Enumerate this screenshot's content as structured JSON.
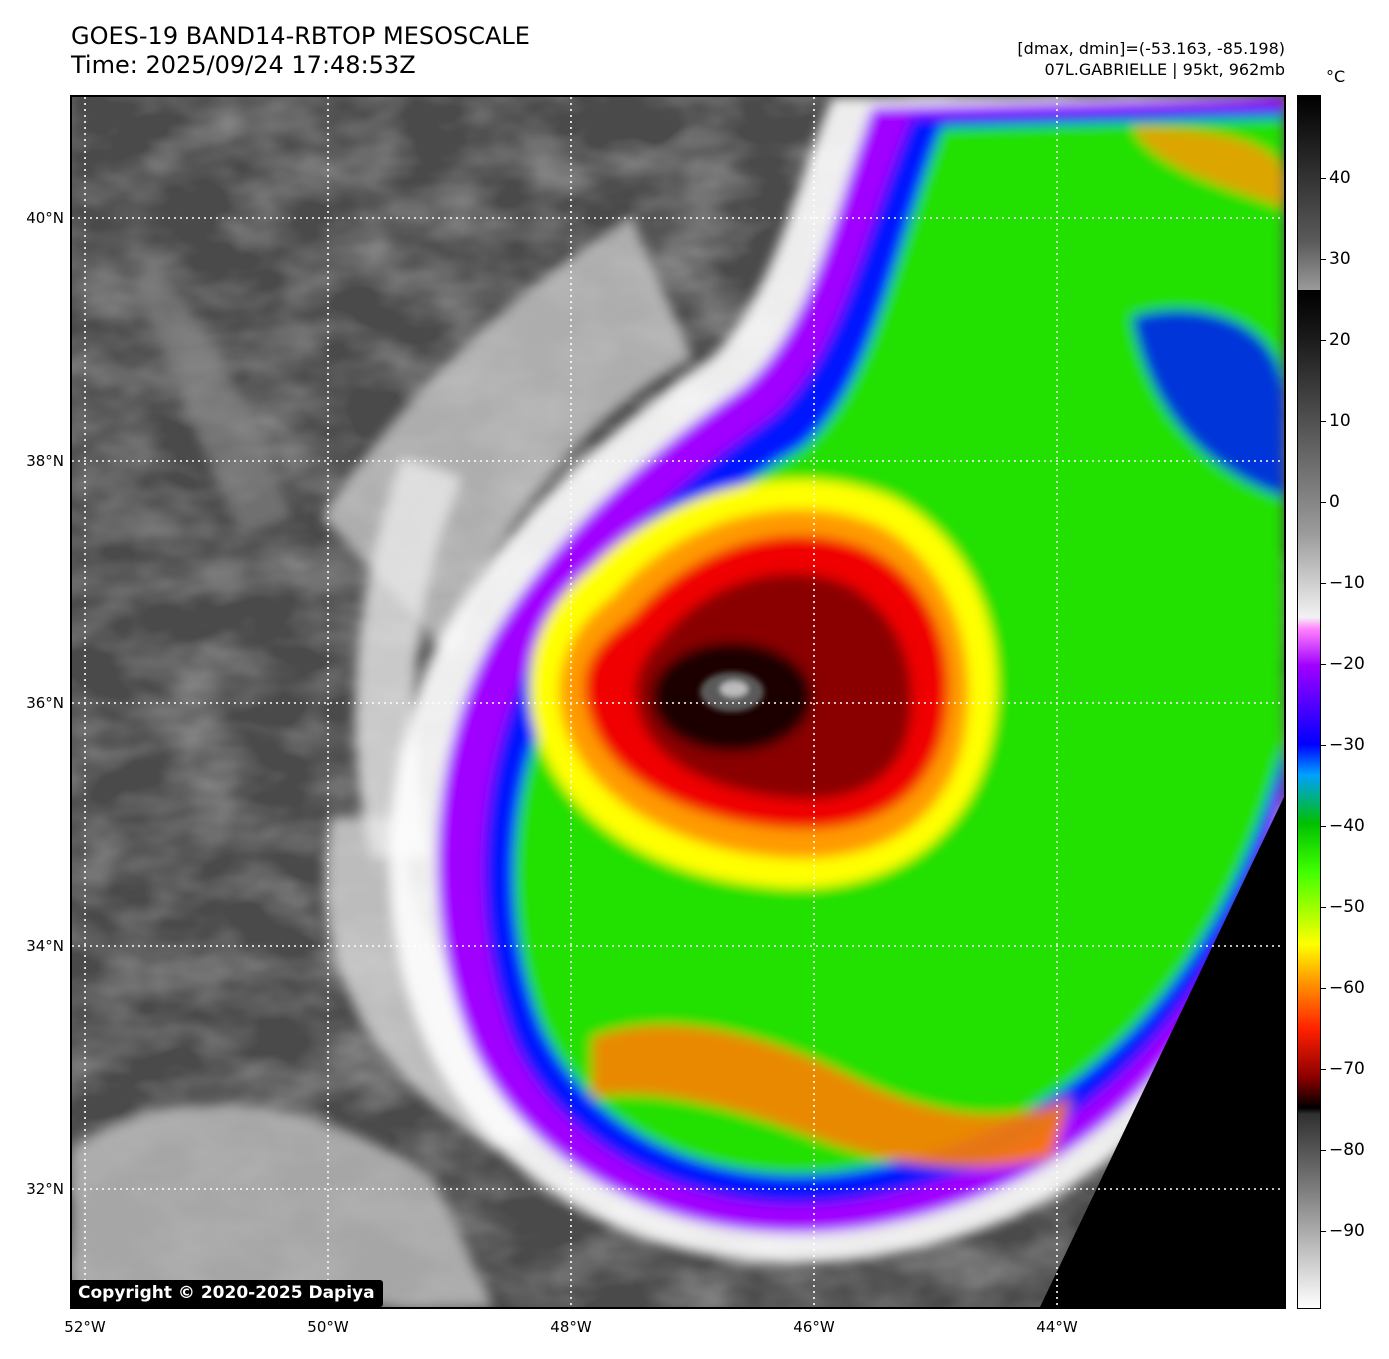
{
  "title_line1": "GOES-19 BAND14-RBTOP MESOSCALE",
  "title_line2": "Time: 2025/09/24 17:48:53Z",
  "info_line1": "[dmax, dmin]=(-53.163, -85.198)",
  "info_line2": "07L.GABRIELLE | 95kt, 962mb",
  "unit_label": "°C",
  "copyright": "Copyright © 2020-2025 Dapiya",
  "lat_labels": [
    "40°N",
    "38°N",
    "36°N",
    "34°N",
    "32°N"
  ],
  "lon_labels": [
    "52°W",
    "50°W",
    "48°W",
    "46°W",
    "44°W"
  ],
  "colorbar_ticks": [
    "40",
    "30",
    "20",
    "10",
    "0",
    "−10",
    "−20",
    "−30",
    "−40",
    "−50",
    "−60",
    "−70",
    "−80",
    "−90"
  ],
  "colors": {
    "cold_cloud_tops": [
      "#000000",
      "#7a0000",
      "#e00000",
      "#ff7a00",
      "#ffff00",
      "#40ff00",
      "#0000ff",
      "#9a00ff"
    ],
    "warm_background": "#4a4a4a"
  }
}
